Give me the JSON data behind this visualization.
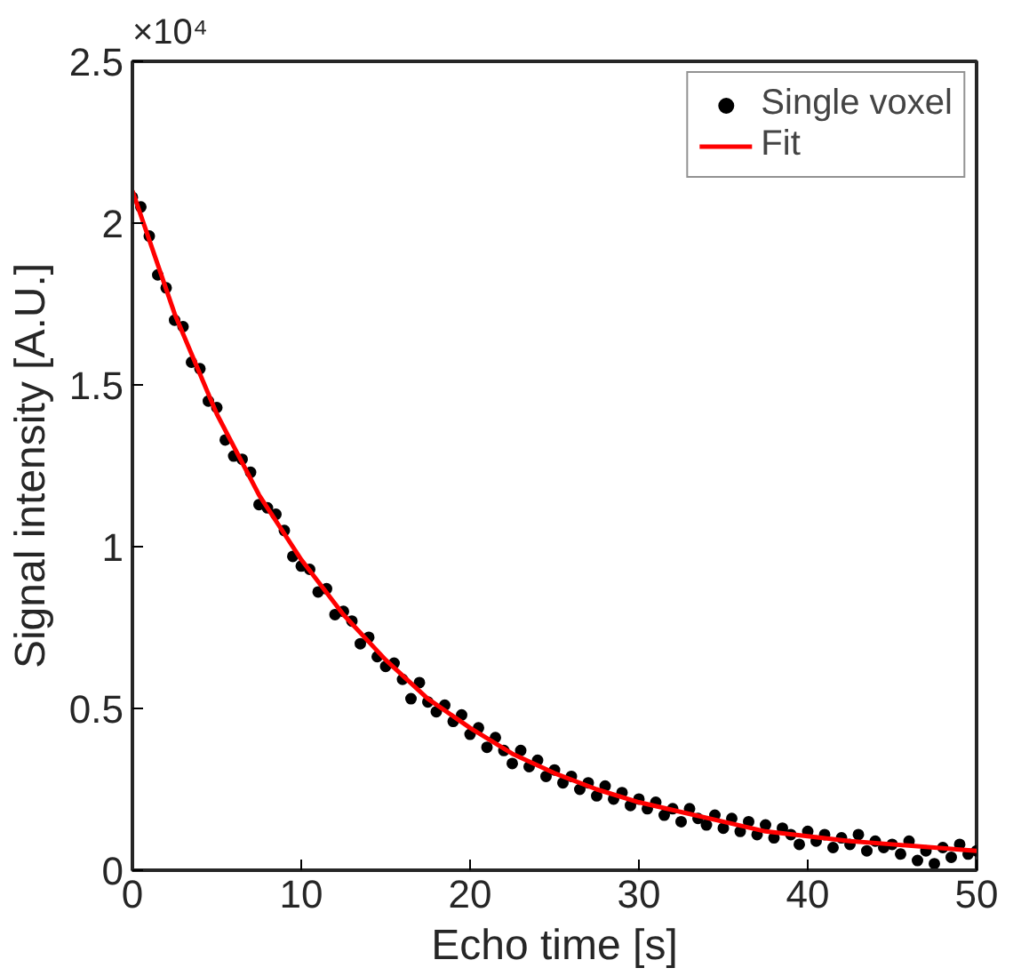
{
  "chart_data": {
    "type": "scatter",
    "xlabel": "Echo time [s]",
    "ylabel": "Signal intensity [A.U.]",
    "annotations": [
      "×10⁴"
    ],
    "xlim": [
      0,
      50
    ],
    "ylim": [
      0,
      2.5
    ],
    "xticks": [
      0,
      10,
      20,
      30,
      40,
      50
    ],
    "yticks": [
      0,
      0.5,
      1,
      1.5,
      2,
      2.5
    ],
    "grid": false,
    "legend": "top right",
    "series": [
      {
        "name": "Single voxel",
        "marker": "circle",
        "color": "#000000",
        "x": [
          0,
          0.5,
          1,
          1.5,
          2,
          2.5,
          3,
          3.5,
          4,
          4.5,
          5,
          5.5,
          6,
          6.5,
          7,
          7.5,
          8,
          8.5,
          9,
          9.5,
          10,
          10.5,
          11,
          11.5,
          12,
          12.5,
          13,
          13.5,
          14,
          14.5,
          15,
          15.5,
          16,
          16.5,
          17,
          17.5,
          18,
          18.5,
          19,
          19.5,
          20,
          20.5,
          21,
          21.5,
          22,
          22.5,
          23,
          23.5,
          24,
          24.5,
          25,
          25.5,
          26,
          26.5,
          27,
          27.5,
          28,
          28.5,
          29,
          29.5,
          30,
          30.5,
          31,
          31.5,
          32,
          32.5,
          33,
          33.5,
          34,
          34.5,
          35,
          35.5,
          36,
          36.5,
          37,
          37.5,
          38,
          38.5,
          39,
          39.5,
          40,
          40.5,
          41,
          41.5,
          42,
          42.5,
          43,
          43.5,
          44,
          44.5,
          45,
          45.5,
          46,
          46.5,
          47,
          47.5,
          48,
          48.5,
          49,
          49.5,
          50
        ],
        "values": [
          2.08,
          2.05,
          1.96,
          1.84,
          1.8,
          1.7,
          1.68,
          1.57,
          1.55,
          1.45,
          1.43,
          1.33,
          1.28,
          1.27,
          1.23,
          1.13,
          1.12,
          1.1,
          1.05,
          0.97,
          0.94,
          0.93,
          0.86,
          0.87,
          0.79,
          0.8,
          0.77,
          0.7,
          0.72,
          0.66,
          0.63,
          0.64,
          0.59,
          0.53,
          0.58,
          0.52,
          0.49,
          0.51,
          0.46,
          0.48,
          0.42,
          0.44,
          0.38,
          0.41,
          0.37,
          0.33,
          0.37,
          0.32,
          0.34,
          0.29,
          0.31,
          0.27,
          0.29,
          0.25,
          0.27,
          0.23,
          0.26,
          0.22,
          0.24,
          0.2,
          0.22,
          0.19,
          0.21,
          0.17,
          0.19,
          0.15,
          0.19,
          0.16,
          0.14,
          0.17,
          0.13,
          0.16,
          0.12,
          0.15,
          0.11,
          0.14,
          0.1,
          0.13,
          0.11,
          0.08,
          0.12,
          0.09,
          0.11,
          0.07,
          0.1,
          0.08,
          0.11,
          0.06,
          0.09,
          0.07,
          0.08,
          0.05,
          0.09,
          0.03,
          0.06,
          0.02,
          0.07,
          0.04,
          0.08,
          0.05,
          0.06
        ]
      },
      {
        "name": "Fit",
        "type": "line",
        "color": "#ff0000",
        "x": [
          0,
          2.5,
          5,
          7.5,
          10,
          12.5,
          15,
          17.5,
          20,
          22.5,
          25,
          27.5,
          30,
          32.5,
          35,
          37.5,
          40,
          42.5,
          45,
          47.5,
          50
        ],
        "values": [
          2.1,
          1.72,
          1.41,
          1.16,
          0.96,
          0.79,
          0.65,
          0.53,
          0.44,
          0.36,
          0.3,
          0.25,
          0.21,
          0.18,
          0.15,
          0.12,
          0.105,
          0.09,
          0.08,
          0.07,
          0.06
        ]
      }
    ]
  }
}
